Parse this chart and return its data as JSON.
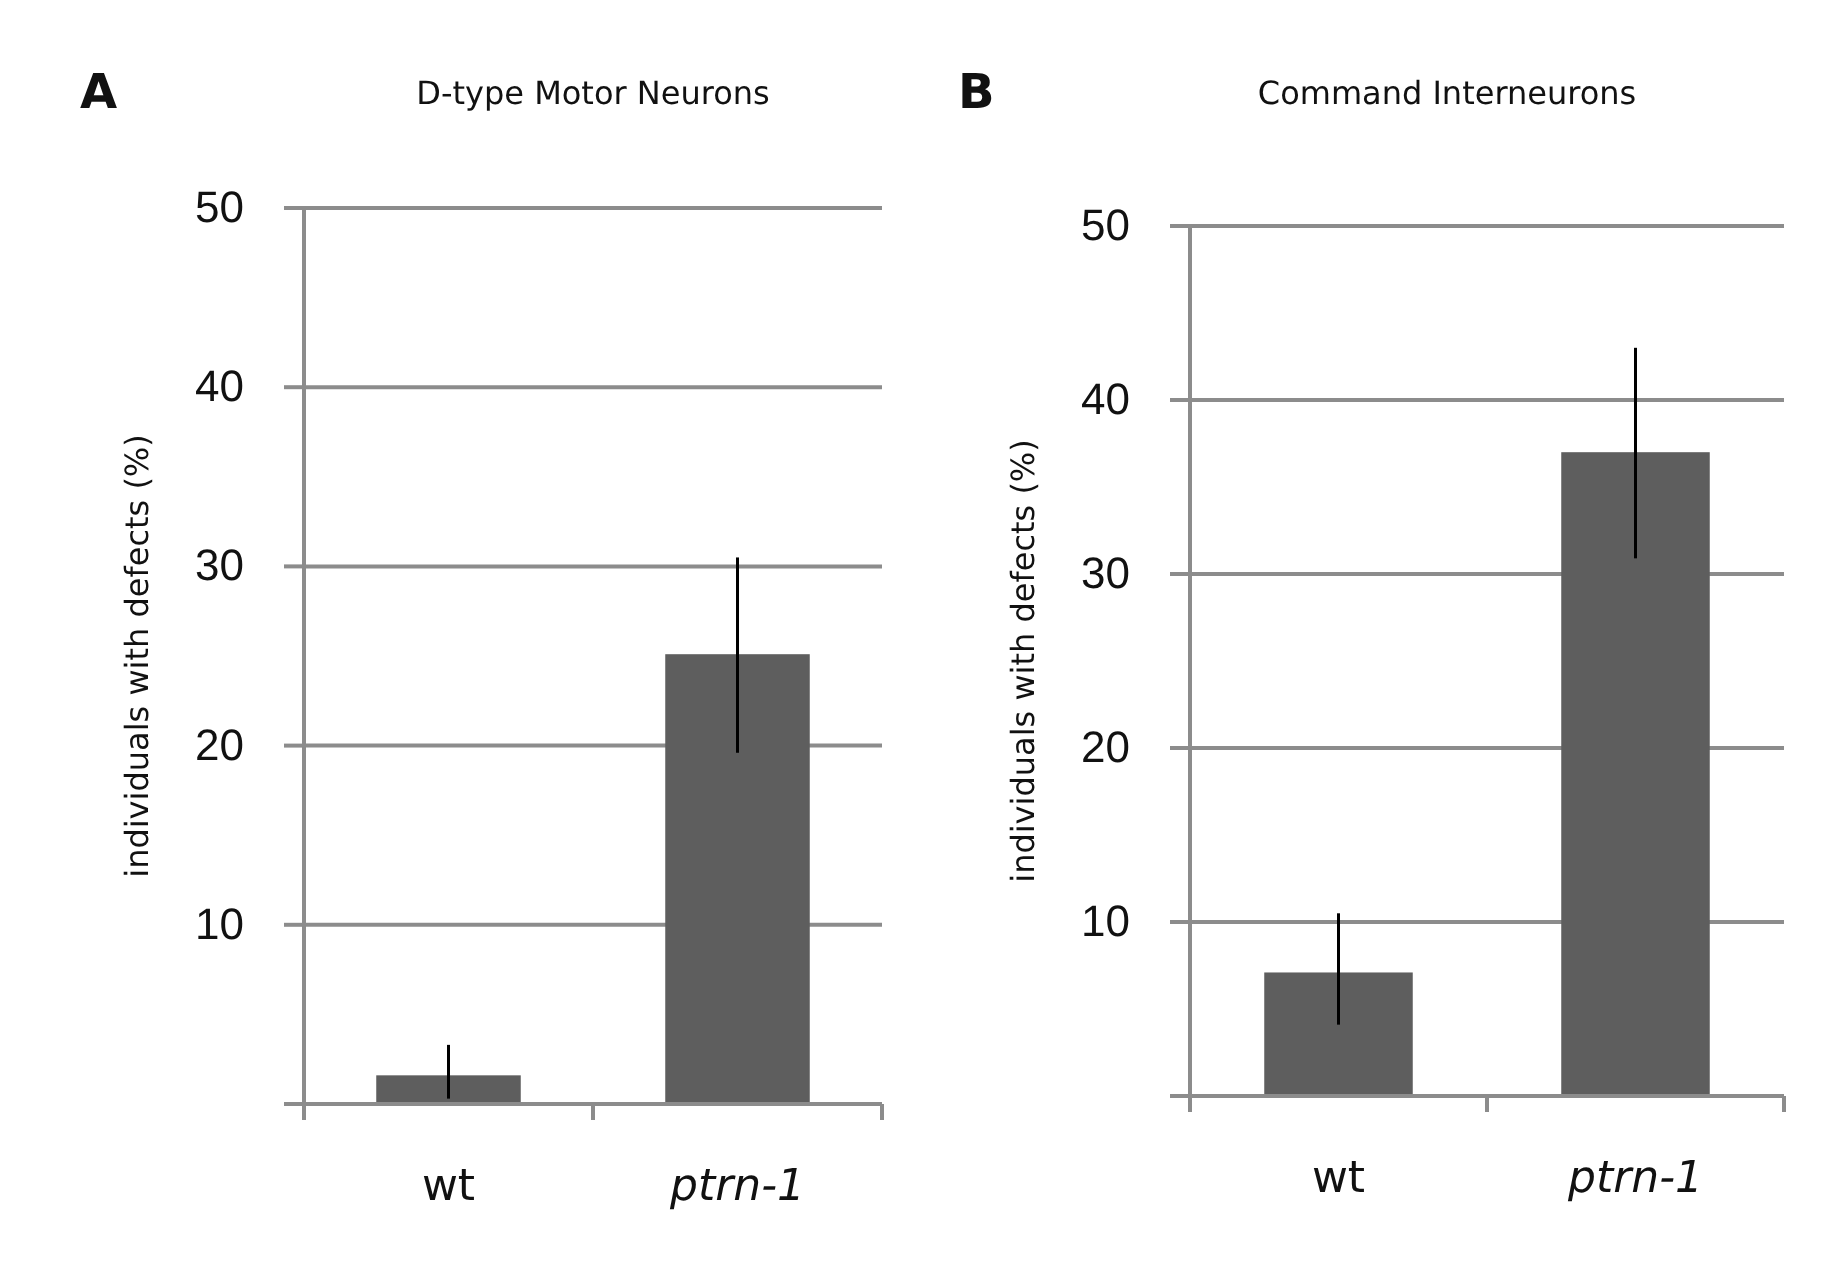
{
  "chart_data": [
    {
      "type": "bar",
      "title": "D-type Motor Neurons",
      "annotations": [
        "A"
      ],
      "ylabel": "individuals with defects (%)",
      "categories": [
        "wt",
        "ptrn-1"
      ],
      "values": [
        1.6,
        25.1
      ],
      "errors": [
        [
          0.3,
          3.3
        ],
        [
          19.6,
          30.5
        ]
      ],
      "color": "#5e5e5e",
      "ylim": [
        0,
        50
      ],
      "yticks": [
        {
          "value": 0,
          "label": null
        },
        10,
        20,
        30,
        40,
        50
      ],
      "grid": "y"
    },
    {
      "type": "bar",
      "title": "Command Interneurons",
      "annotations": [
        "B"
      ],
      "ylabel": "individuals with defects (%)",
      "categories": [
        "wt",
        "ptrn-1"
      ],
      "values": [
        7.1,
        37.0
      ],
      "errors": [
        [
          4.1,
          10.5
        ],
        [
          30.9,
          43.0
        ]
      ],
      "color": "#5e5e5e",
      "ylim": [
        0,
        50
      ],
      "yticks": [
        {
          "value": 0,
          "label": null
        },
        10,
        20,
        30,
        40,
        50
      ],
      "grid": "y"
    }
  ]
}
